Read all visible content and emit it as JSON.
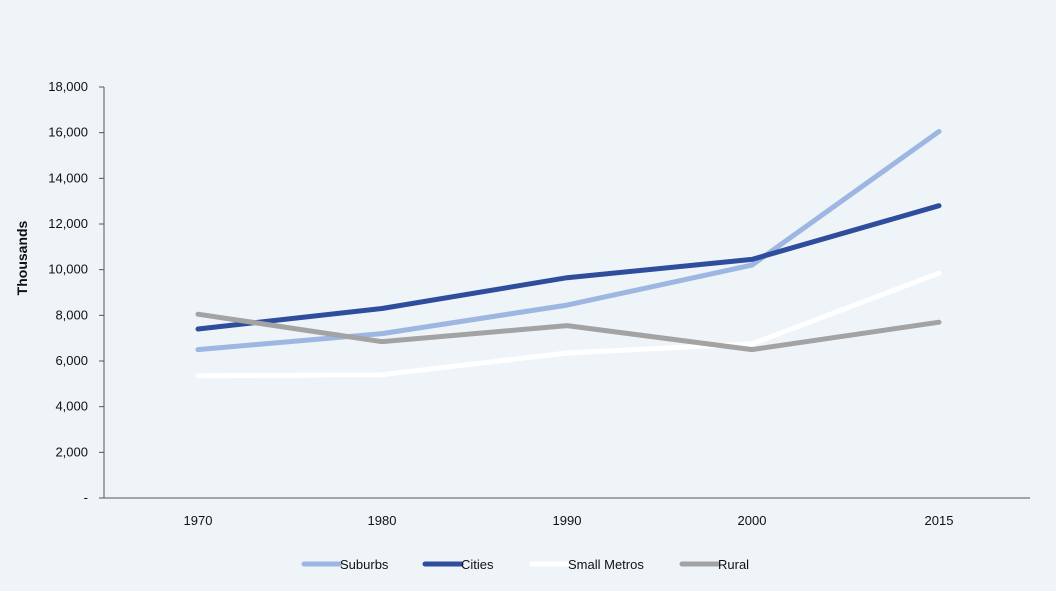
{
  "chart_data": {
    "type": "line",
    "title": "",
    "xlabel": "",
    "ylabel": "Thousands",
    "categories": [
      "1970",
      "1980",
      "1990",
      "2000",
      "2015"
    ],
    "ylim": [
      0,
      18000
    ],
    "yticks": [
      0,
      2000,
      4000,
      6000,
      8000,
      10000,
      12000,
      14000,
      16000,
      18000
    ],
    "ytick_labels": [
      "-",
      "2,000",
      "4,000",
      "6,000",
      "8,000",
      "10,000",
      "12,000",
      "14,000",
      "16,000",
      "18,000"
    ],
    "grid": false,
    "legend_position": "bottom",
    "series": [
      {
        "name": "Suburbs",
        "color": "#9db6e2",
        "values": [
          6500,
          7200,
          8450,
          10200,
          16050
        ]
      },
      {
        "name": "Cities",
        "color": "#2e4d9c",
        "values": [
          7400,
          8300,
          9650,
          10450,
          12800
        ]
      },
      {
        "name": "Small Metros",
        "color": "#ffffff",
        "values": [
          5350,
          5400,
          6350,
          6750,
          9850
        ]
      },
      {
        "name": "Rural",
        "color": "#a3a3a3",
        "values": [
          8050,
          6850,
          7550,
          6500,
          7700
        ]
      }
    ]
  }
}
